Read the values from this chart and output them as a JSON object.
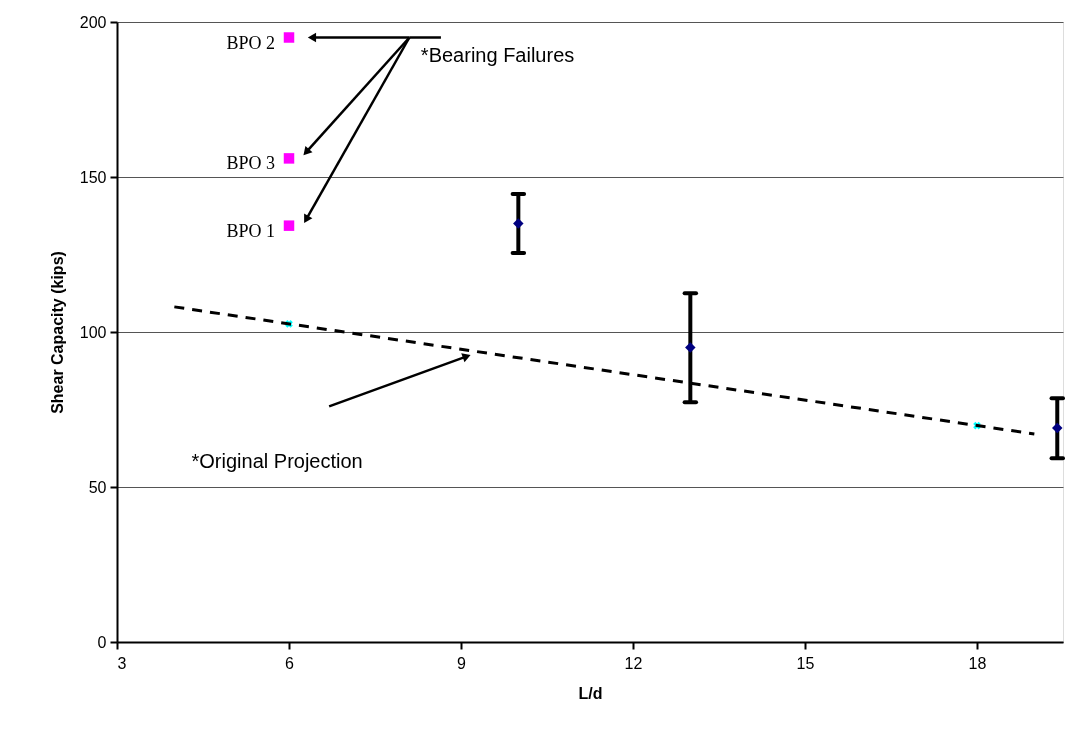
{
  "chart_data": {
    "type": "scatter",
    "xlabel": "L/d",
    "ylabel": "Shear Capacity (kips)",
    "xlim": [
      3,
      19.5
    ],
    "xticks": [
      3,
      6,
      9,
      12,
      15,
      18
    ],
    "ylim": [
      0,
      200
    ],
    "yticks": [
      0,
      50,
      100,
      150,
      200
    ],
    "grid": "y",
    "series": [
      {
        "marker": "square",
        "color": "#ff00ff",
        "x": [
          6,
          6,
          6
        ],
        "values": [
          195,
          156,
          134.3
        ],
        "value_labels": [
          "BPO 2",
          "BPO 3",
          "BPO 1"
        ]
      },
      {
        "marker": "diamond",
        "color": "#000080",
        "x": [
          10,
          13,
          19.4
        ],
        "values": [
          135,
          95,
          69
        ],
        "errors": [
          [
            125.5,
            144.5
          ],
          [
            77.3,
            112.5
          ],
          [
            59.3,
            78.6
          ]
        ]
      },
      {
        "marker": "cross",
        "color": "#00ffff",
        "x": [
          6,
          18
        ],
        "values": [
          102.6,
          69.8
        ]
      },
      {
        "type": "line",
        "line_style": "dashed",
        "marker": "none",
        "color": "#000000",
        "x": [
          4,
          19
        ],
        "values": [
          108.1,
          67.1
        ]
      }
    ],
    "annotations": [
      "*Bearing Failures",
      "*Original Projection"
    ]
  }
}
